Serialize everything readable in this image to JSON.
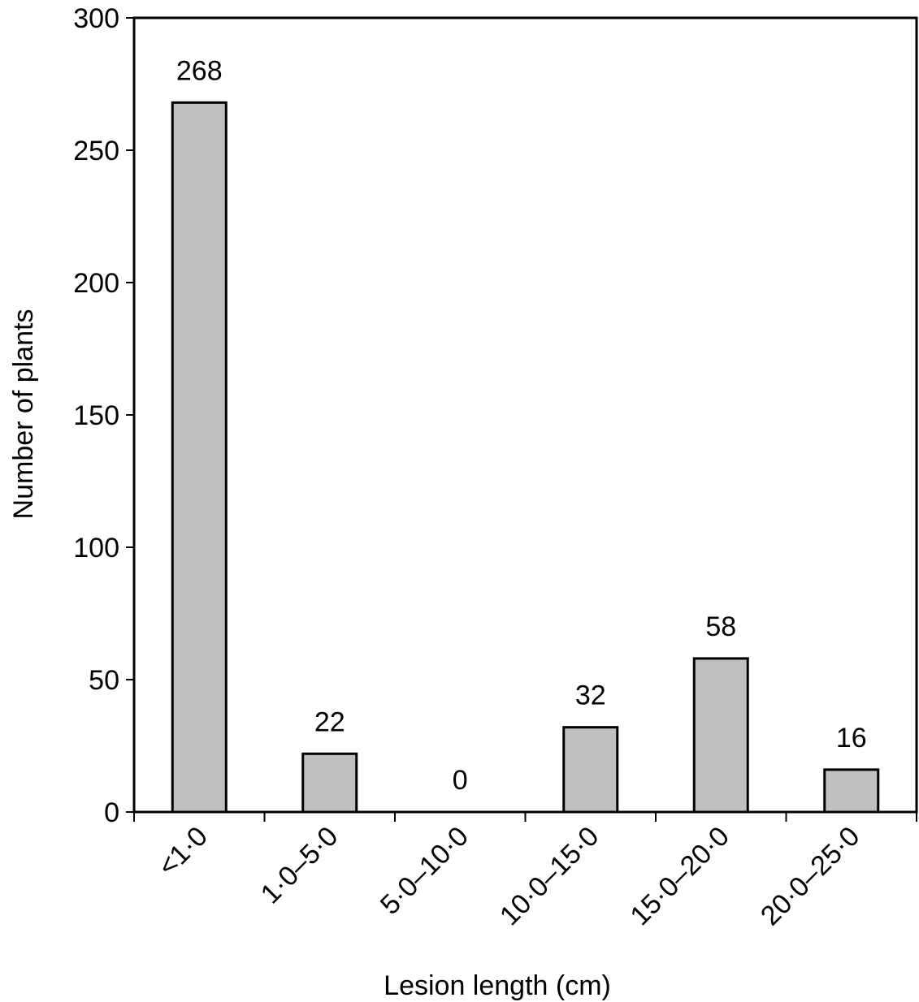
{
  "chart_data": {
    "type": "bar",
    "x_label": "Lesion length (cm)",
    "y_label": "Number of plants",
    "categories": [
      "<1·0",
      "1·0–5·0",
      "5·0–10·0",
      "10·0–15·0",
      "15·0–20·0",
      "20·0–25·0"
    ],
    "values": [
      268,
      22,
      0,
      32,
      58,
      16
    ],
    "color": "#c0c0c0",
    "ylim": [
      0,
      300
    ],
    "yticks": [
      0,
      50,
      100,
      150,
      200,
      250,
      300
    ]
  }
}
